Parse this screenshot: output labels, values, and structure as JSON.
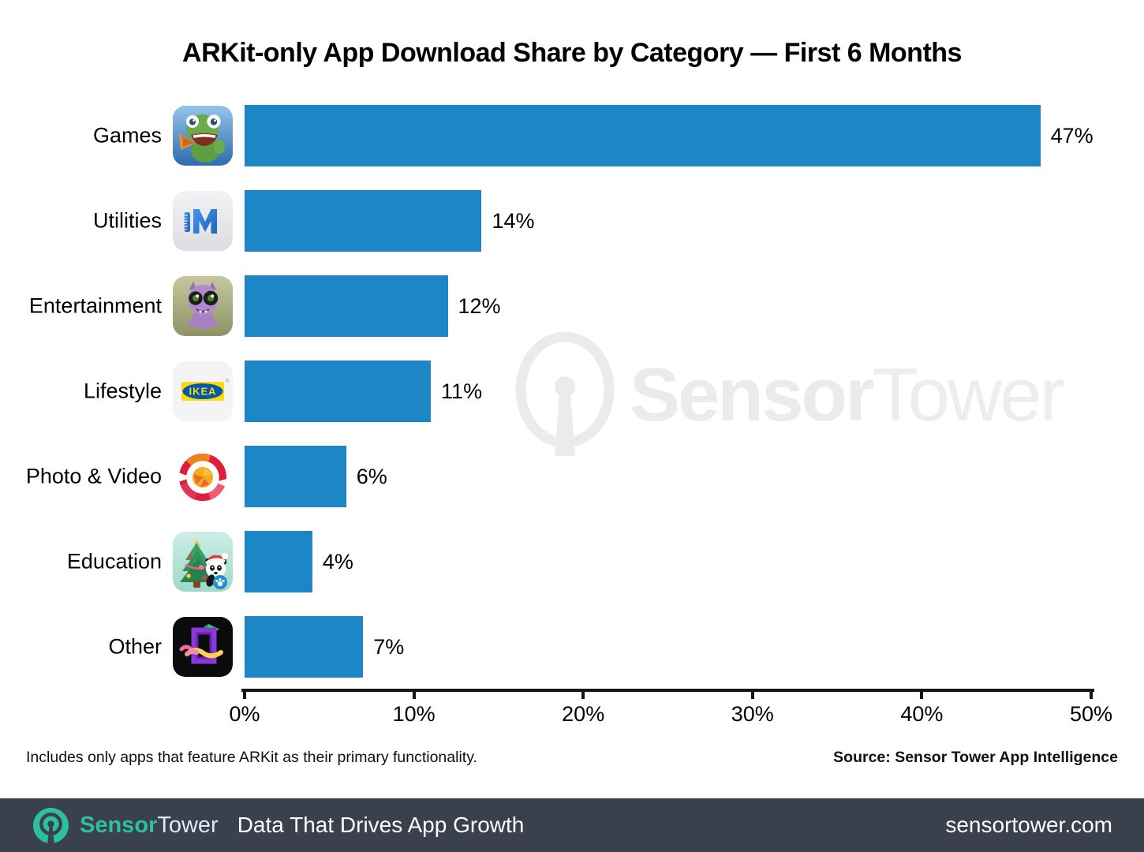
{
  "title": "ARKit-only App Download Share by Category — First 6 Months",
  "chart_data": {
    "type": "bar",
    "orientation": "horizontal",
    "title": "ARKit-only App Download Share by Category — First 6 Months",
    "categories": [
      "Games",
      "Utilities",
      "Entertainment",
      "Lifestyle",
      "Photo & Video",
      "Education",
      "Other"
    ],
    "values": [
      47,
      14,
      12,
      11,
      6,
      4,
      7
    ],
    "value_labels": [
      "47%",
      "14%",
      "12%",
      "11%",
      "6%",
      "4%",
      "7%"
    ],
    "icons": [
      "ar-dragon-game-icon",
      "measure-ruler-app-icon",
      "ar-monster-app-icon",
      "ikea-place-app-icon",
      "photo-ring-app-icon",
      "panda-christmas-app-icon",
      "ar-doodle-app-icon"
    ],
    "xlabel": "",
    "ylabel": "",
    "xlim": [
      0,
      50
    ],
    "x_ticks": [
      "0%",
      "10%",
      "20%",
      "30%",
      "40%",
      "50%"
    ],
    "grid": false,
    "legend": false,
    "bar_color": "#1d86c6"
  },
  "watermark": {
    "brand_bold": "Sensor",
    "brand_light": "Tower",
    "color": "#ebebeb"
  },
  "footnotes": {
    "left": "Includes only apps that feature ARKit as their primary functionality.",
    "right": "Source: Sensor Tower App Intelligence"
  },
  "footer": {
    "brand_bold": "Sensor",
    "brand_light": "Tower",
    "tagline": "Data That Drives App Growth",
    "url": "sensortower.com",
    "bg_color": "#3a414c",
    "teal": "#2dbfa2"
  }
}
